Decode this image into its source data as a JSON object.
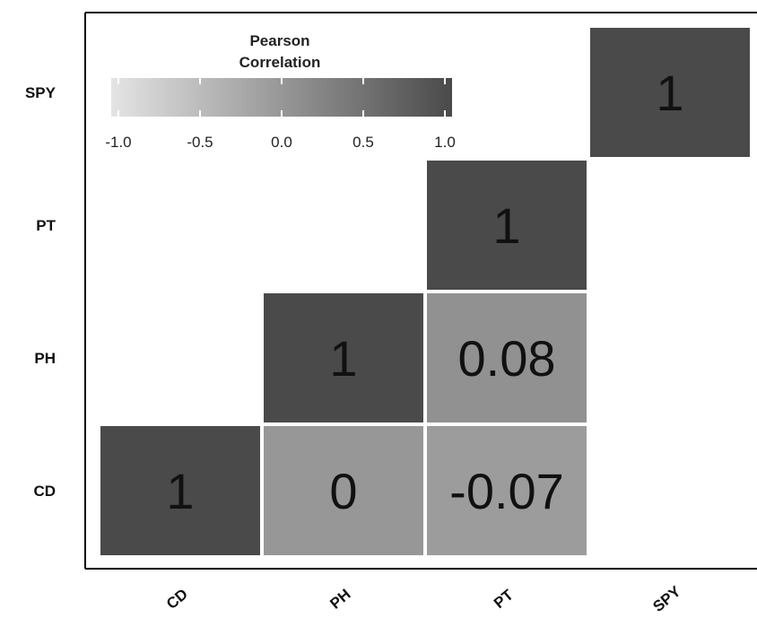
{
  "chart_data": {
    "type": "heatmap",
    "title": "",
    "xlabel": "",
    "ylabel": "",
    "x_categories": [
      "CD",
      "PH",
      "PT",
      "SPY"
    ],
    "y_categories": [
      "CD",
      "PH",
      "PT",
      "SPY"
    ],
    "cells": [
      {
        "x": "CD",
        "y": "CD",
        "value": 1,
        "label": "1"
      },
      {
        "x": "PH",
        "y": "CD",
        "value": 0,
        "label": "0"
      },
      {
        "x": "PT",
        "y": "CD",
        "value": -0.07,
        "label": "-0.07"
      },
      {
        "x": "PH",
        "y": "PH",
        "value": 1,
        "label": "1"
      },
      {
        "x": "PT",
        "y": "PH",
        "value": 0.08,
        "label": "0.08"
      },
      {
        "x": "PT",
        "y": "PT",
        "value": 1,
        "label": "1"
      },
      {
        "x": "SPY",
        "y": "SPY",
        "value": 1,
        "label": "1"
      }
    ],
    "legend": {
      "title_lines": [
        "Pearson",
        "Correlation"
      ],
      "ticks": [
        "-1.0",
        "-0.5",
        "0.0",
        "0.5",
        "1.0"
      ],
      "range": [
        -1,
        1
      ],
      "placement": "top-left",
      "color_low": "#e4e4e4",
      "color_high": "#4a4a4a"
    },
    "grid": false
  }
}
